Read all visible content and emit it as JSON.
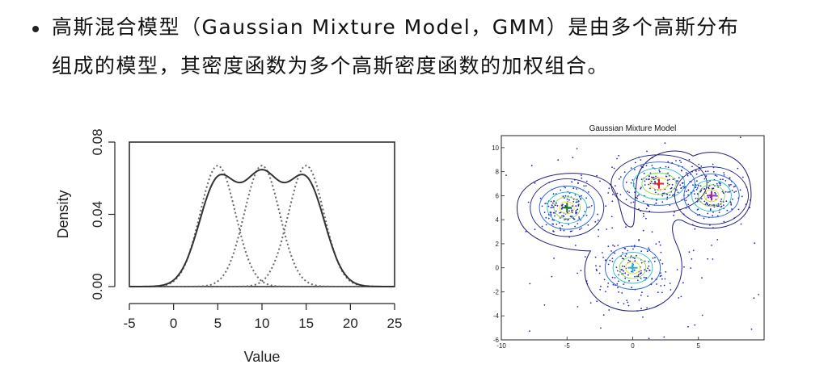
{
  "bullet": {
    "line1": "高斯混合模型（Gaussian Mixture Model，GMM）是由多个高斯分布",
    "line2": "组成的模型，其密度函数为多个高斯密度函数的加权组合。"
  },
  "chart_data": [
    {
      "type": "line",
      "title": "",
      "xlabel": "Value",
      "ylabel": "Density",
      "xlim": [
        -5,
        25
      ],
      "ylim": [
        0,
        0.08
      ],
      "xticks": [
        "-5",
        "0",
        "5",
        "10",
        "15",
        "20",
        "25"
      ],
      "yticks": [
        "0.00",
        "0.04",
        "0.08"
      ],
      "components": [
        {
          "mean": 5,
          "sd": 2,
          "peak": 0.067
        },
        {
          "mean": 10,
          "sd": 2,
          "peak": 0.067
        },
        {
          "mean": 15,
          "sd": 2,
          "peak": 0.067
        }
      ],
      "series": [
        {
          "style": "solid",
          "x": [
            -5,
            0,
            2,
            3,
            4,
            5,
            6,
            7.5,
            9,
            10,
            11,
            12.5,
            14,
            15,
            16,
            17,
            18,
            20,
            25
          ],
          "values": [
            0.0,
            0.002,
            0.016,
            0.034,
            0.054,
            0.069,
            0.067,
            0.061,
            0.069,
            0.072,
            0.069,
            0.061,
            0.067,
            0.069,
            0.054,
            0.034,
            0.016,
            0.002,
            0.0
          ]
        }
      ],
      "color": "#333333"
    },
    {
      "type": "scatter",
      "title": "Gaussian Mixture Model",
      "xlabel": "",
      "ylabel": "",
      "xlim": [
        -10,
        10
      ],
      "ylim": [
        -6,
        11
      ],
      "xticks": [
        "-10",
        "-5",
        "0",
        "5"
      ],
      "yticks": [
        "-6",
        "-4",
        "-2",
        "0",
        "2",
        "4",
        "6",
        "8",
        "10"
      ],
      "clusters": [
        {
          "center": [
            -5,
            5
          ],
          "marker_color": "#1a7a1a"
        },
        {
          "center": [
            2,
            7
          ],
          "marker_color": "#e02020"
        },
        {
          "center": [
            6,
            6
          ],
          "marker_color": "#b020b0"
        },
        {
          "center": [
            0,
            0
          ],
          "marker_color": "#20b0d0"
        }
      ],
      "point_color": "#2222cc",
      "contour_outer_color": "#1a1a7a",
      "contour_inner_colors": [
        "#2060e0",
        "#20c0c0",
        "#80e040",
        "#e0e020",
        "#ff8020"
      ]
    }
  ]
}
